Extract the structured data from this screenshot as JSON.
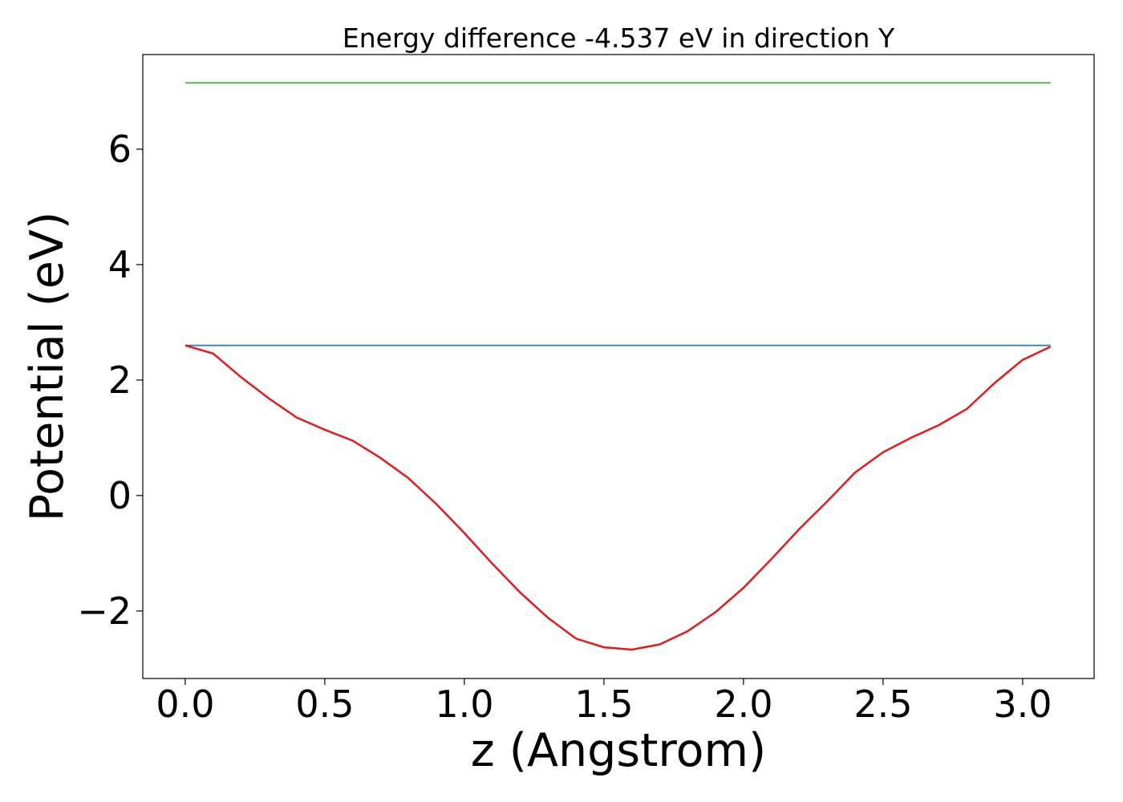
{
  "chart_data": {
    "type": "line",
    "title": "Energy difference -4.537 eV in direction Y",
    "xlabel": "z (Angstrom)",
    "ylabel": "Potential (eV)",
    "x": [
      0.0,
      0.1,
      0.2,
      0.3,
      0.4,
      0.5,
      0.6,
      0.7,
      0.8,
      0.9,
      1.0,
      1.1,
      1.2,
      1.3,
      1.4,
      1.5,
      1.6,
      1.7,
      1.8,
      1.9,
      2.0,
      2.1,
      2.2,
      2.3,
      2.4,
      2.5,
      2.6,
      2.7,
      2.8,
      2.9,
      3.0,
      3.1
    ],
    "series": [
      {
        "color": "#4daf4a",
        "values": [
          7.15,
          7.15,
          7.15,
          7.15,
          7.15,
          7.15,
          7.15,
          7.15,
          7.15,
          7.15,
          7.15,
          7.15,
          7.15,
          7.15,
          7.15,
          7.15,
          7.15,
          7.15,
          7.15,
          7.15,
          7.15,
          7.15,
          7.15,
          7.15,
          7.15,
          7.15,
          7.15,
          7.15,
          7.15,
          7.15,
          7.15,
          7.15
        ]
      },
      {
        "color": "#377eb8",
        "values": [
          2.6,
          2.6,
          2.6,
          2.6,
          2.6,
          2.6,
          2.6,
          2.6,
          2.6,
          2.6,
          2.6,
          2.6,
          2.6,
          2.6,
          2.6,
          2.6,
          2.6,
          2.6,
          2.6,
          2.6,
          2.6,
          2.6,
          2.6,
          2.6,
          2.6,
          2.6,
          2.6,
          2.6,
          2.6,
          2.6,
          2.6,
          2.6
        ]
      },
      {
        "color": "#e41a1c",
        "values": [
          2.6,
          2.46,
          2.05,
          1.68,
          1.35,
          1.14,
          0.95,
          0.65,
          0.3,
          -0.15,
          -0.65,
          -1.18,
          -1.68,
          -2.12,
          -2.48,
          -2.63,
          -2.67,
          -2.58,
          -2.35,
          -2.02,
          -1.6,
          -1.1,
          -0.58,
          -0.1,
          0.4,
          0.75,
          1.0,
          1.22,
          1.5,
          1.95,
          2.35,
          2.58
        ]
      }
    ],
    "xlim": [
      -0.152,
      3.256
    ],
    "xticks": [
      {
        "value": 0,
        "label": "0.0"
      },
      0.5,
      {
        "value": 1,
        "label": "1.0"
      },
      1.5,
      {
        "value": 2,
        "label": "2.0"
      },
      2.5,
      {
        "value": 3,
        "label": "3.0"
      }
    ],
    "ylim": [
      -3.17,
      7.64
    ],
    "yticks": [
      {
        "value": -2,
        "label": "−2"
      },
      0,
      2,
      4,
      6
    ],
    "grid": false
  }
}
